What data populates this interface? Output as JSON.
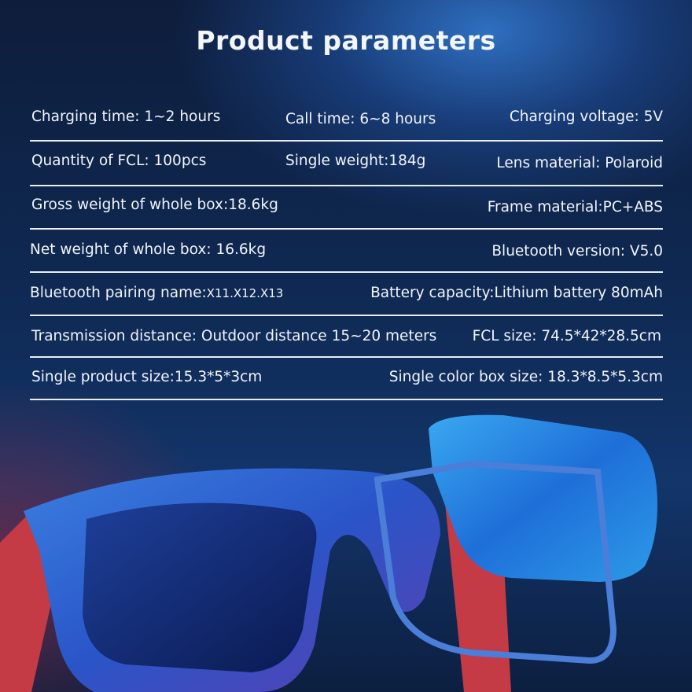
{
  "title": "Product parameters",
  "rows": [
    [
      "Charging time:  1~2 hours",
      "Call time: 6~8 hours",
      "Charging voltage:  5V"
    ],
    [
      "Quantity of FCL:  100pcs",
      "Single weight:184g",
      "Lens material:  Polaroid"
    ],
    [
      "Gross weight of whole box:18.6kg",
      "",
      "Frame material:PC+ABS"
    ],
    [
      "Net weight of whole box:  16.6kg",
      "",
      "Bluetooth version: V5.0"
    ],
    [
      "Bluetooth pairing name:",
      "X11.X12.X13",
      "Battery capacity:Lithium battery 80mAh"
    ],
    [
      "Transmission distance:  Outdoor distance 15~20 meters",
      "",
      "FCL size: 74.5*42*28.5cm"
    ],
    [
      "Single product size:15.3*5*3cm",
      "",
      "Single color box size: 18.3*8.5*5.3cm"
    ]
  ]
}
